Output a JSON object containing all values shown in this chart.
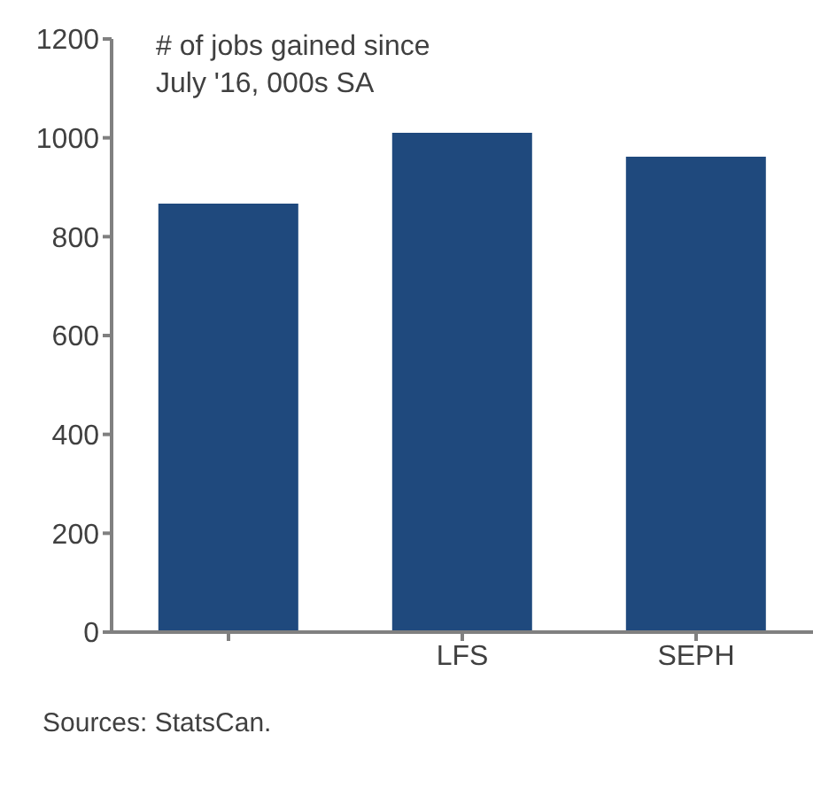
{
  "chart_data": {
    "type": "bar",
    "title": "# of jobs gained since\nJuly '16, 000s SA",
    "categories": [
      null,
      "LFS",
      "SEPH"
    ],
    "values": [
      867,
      1010,
      962
    ],
    "color": "#1f497d",
    "ylim": [
      0,
      1200
    ],
    "yticks": [
      0,
      200,
      400,
      600,
      800,
      1000,
      1200
    ],
    "annotations": [
      "Sources: StatsCan."
    ]
  }
}
